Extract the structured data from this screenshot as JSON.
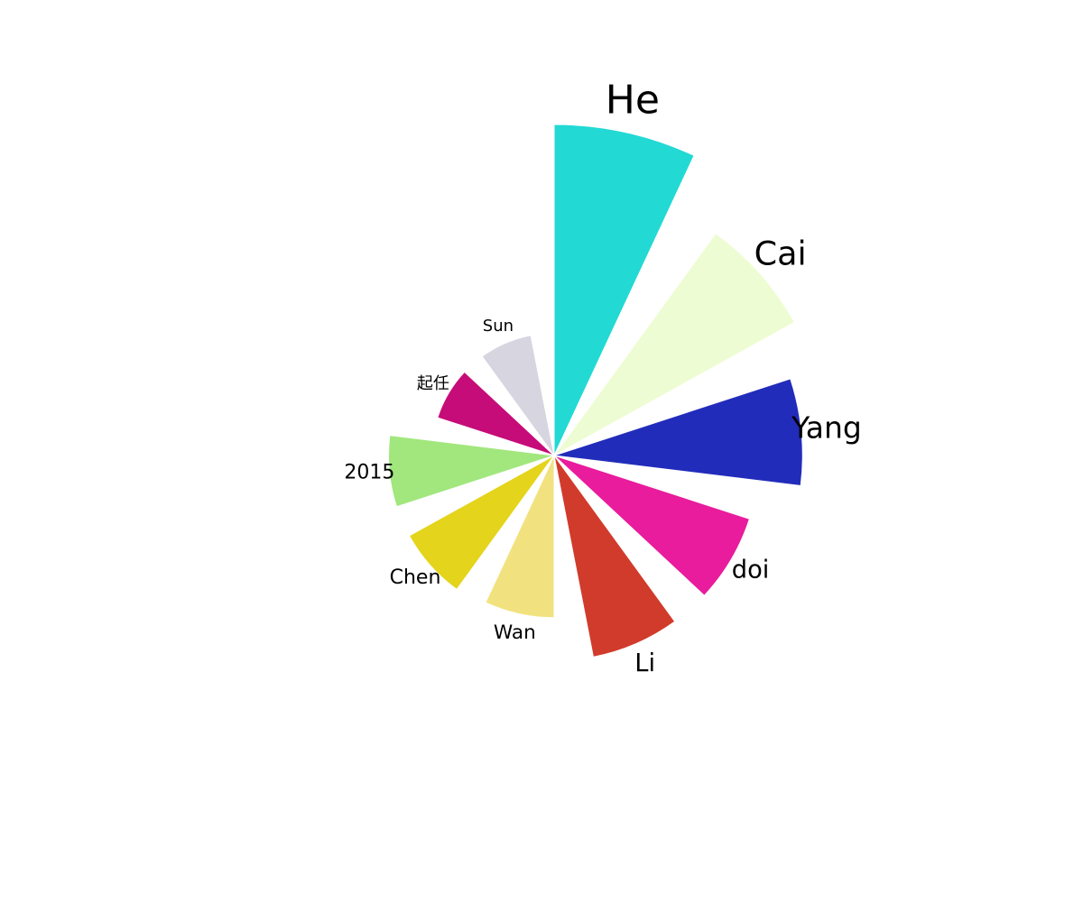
{
  "chart_data": {
    "type": "pie",
    "subtype": "nightingale-rose",
    "title": "",
    "legend": "none",
    "slices": [
      {
        "label": "He",
        "value": 100,
        "color": "#22d9d4"
      },
      {
        "label": "Cai",
        "value": 83,
        "color": "#eefcd3"
      },
      {
        "label": "Yang",
        "value": 75,
        "color": "#222cba"
      },
      {
        "label": "doi",
        "value": 62,
        "color": "#e81c9c"
      },
      {
        "label": "Li",
        "value": 62,
        "color": "#d13b2b"
      },
      {
        "label": "Wan",
        "value": 49,
        "color": "#f2e27f"
      },
      {
        "label": "Chen",
        "value": 50,
        "color": "#e4d41b"
      },
      {
        "label": "2015",
        "value": 50,
        "color": "#a1e77d"
      },
      {
        "label": "起任",
        "value": 37,
        "color": "#c60c78"
      },
      {
        "label": "Sun",
        "value": 37,
        "color": "#d6d5e0"
      }
    ]
  }
}
